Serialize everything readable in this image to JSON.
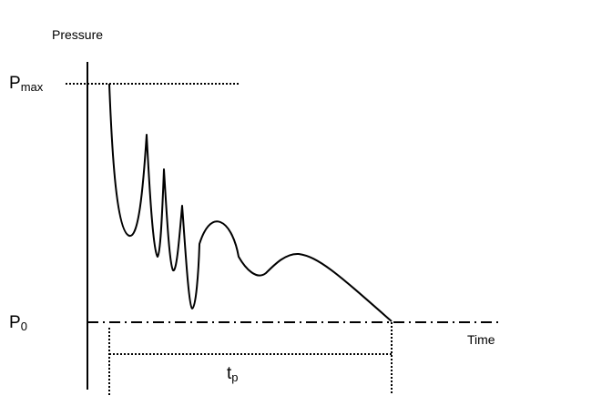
{
  "diagram": {
    "y_axis_label": "Pressure",
    "x_axis_label": "Time",
    "pmax_label": {
      "main": "P",
      "sub": "max"
    },
    "p0_label": {
      "main": "P",
      "sub": "0"
    },
    "duration_label": {
      "main": "t",
      "sub": "p"
    },
    "colors": {
      "ink": "#000000",
      "background": "#ffffff"
    }
  }
}
